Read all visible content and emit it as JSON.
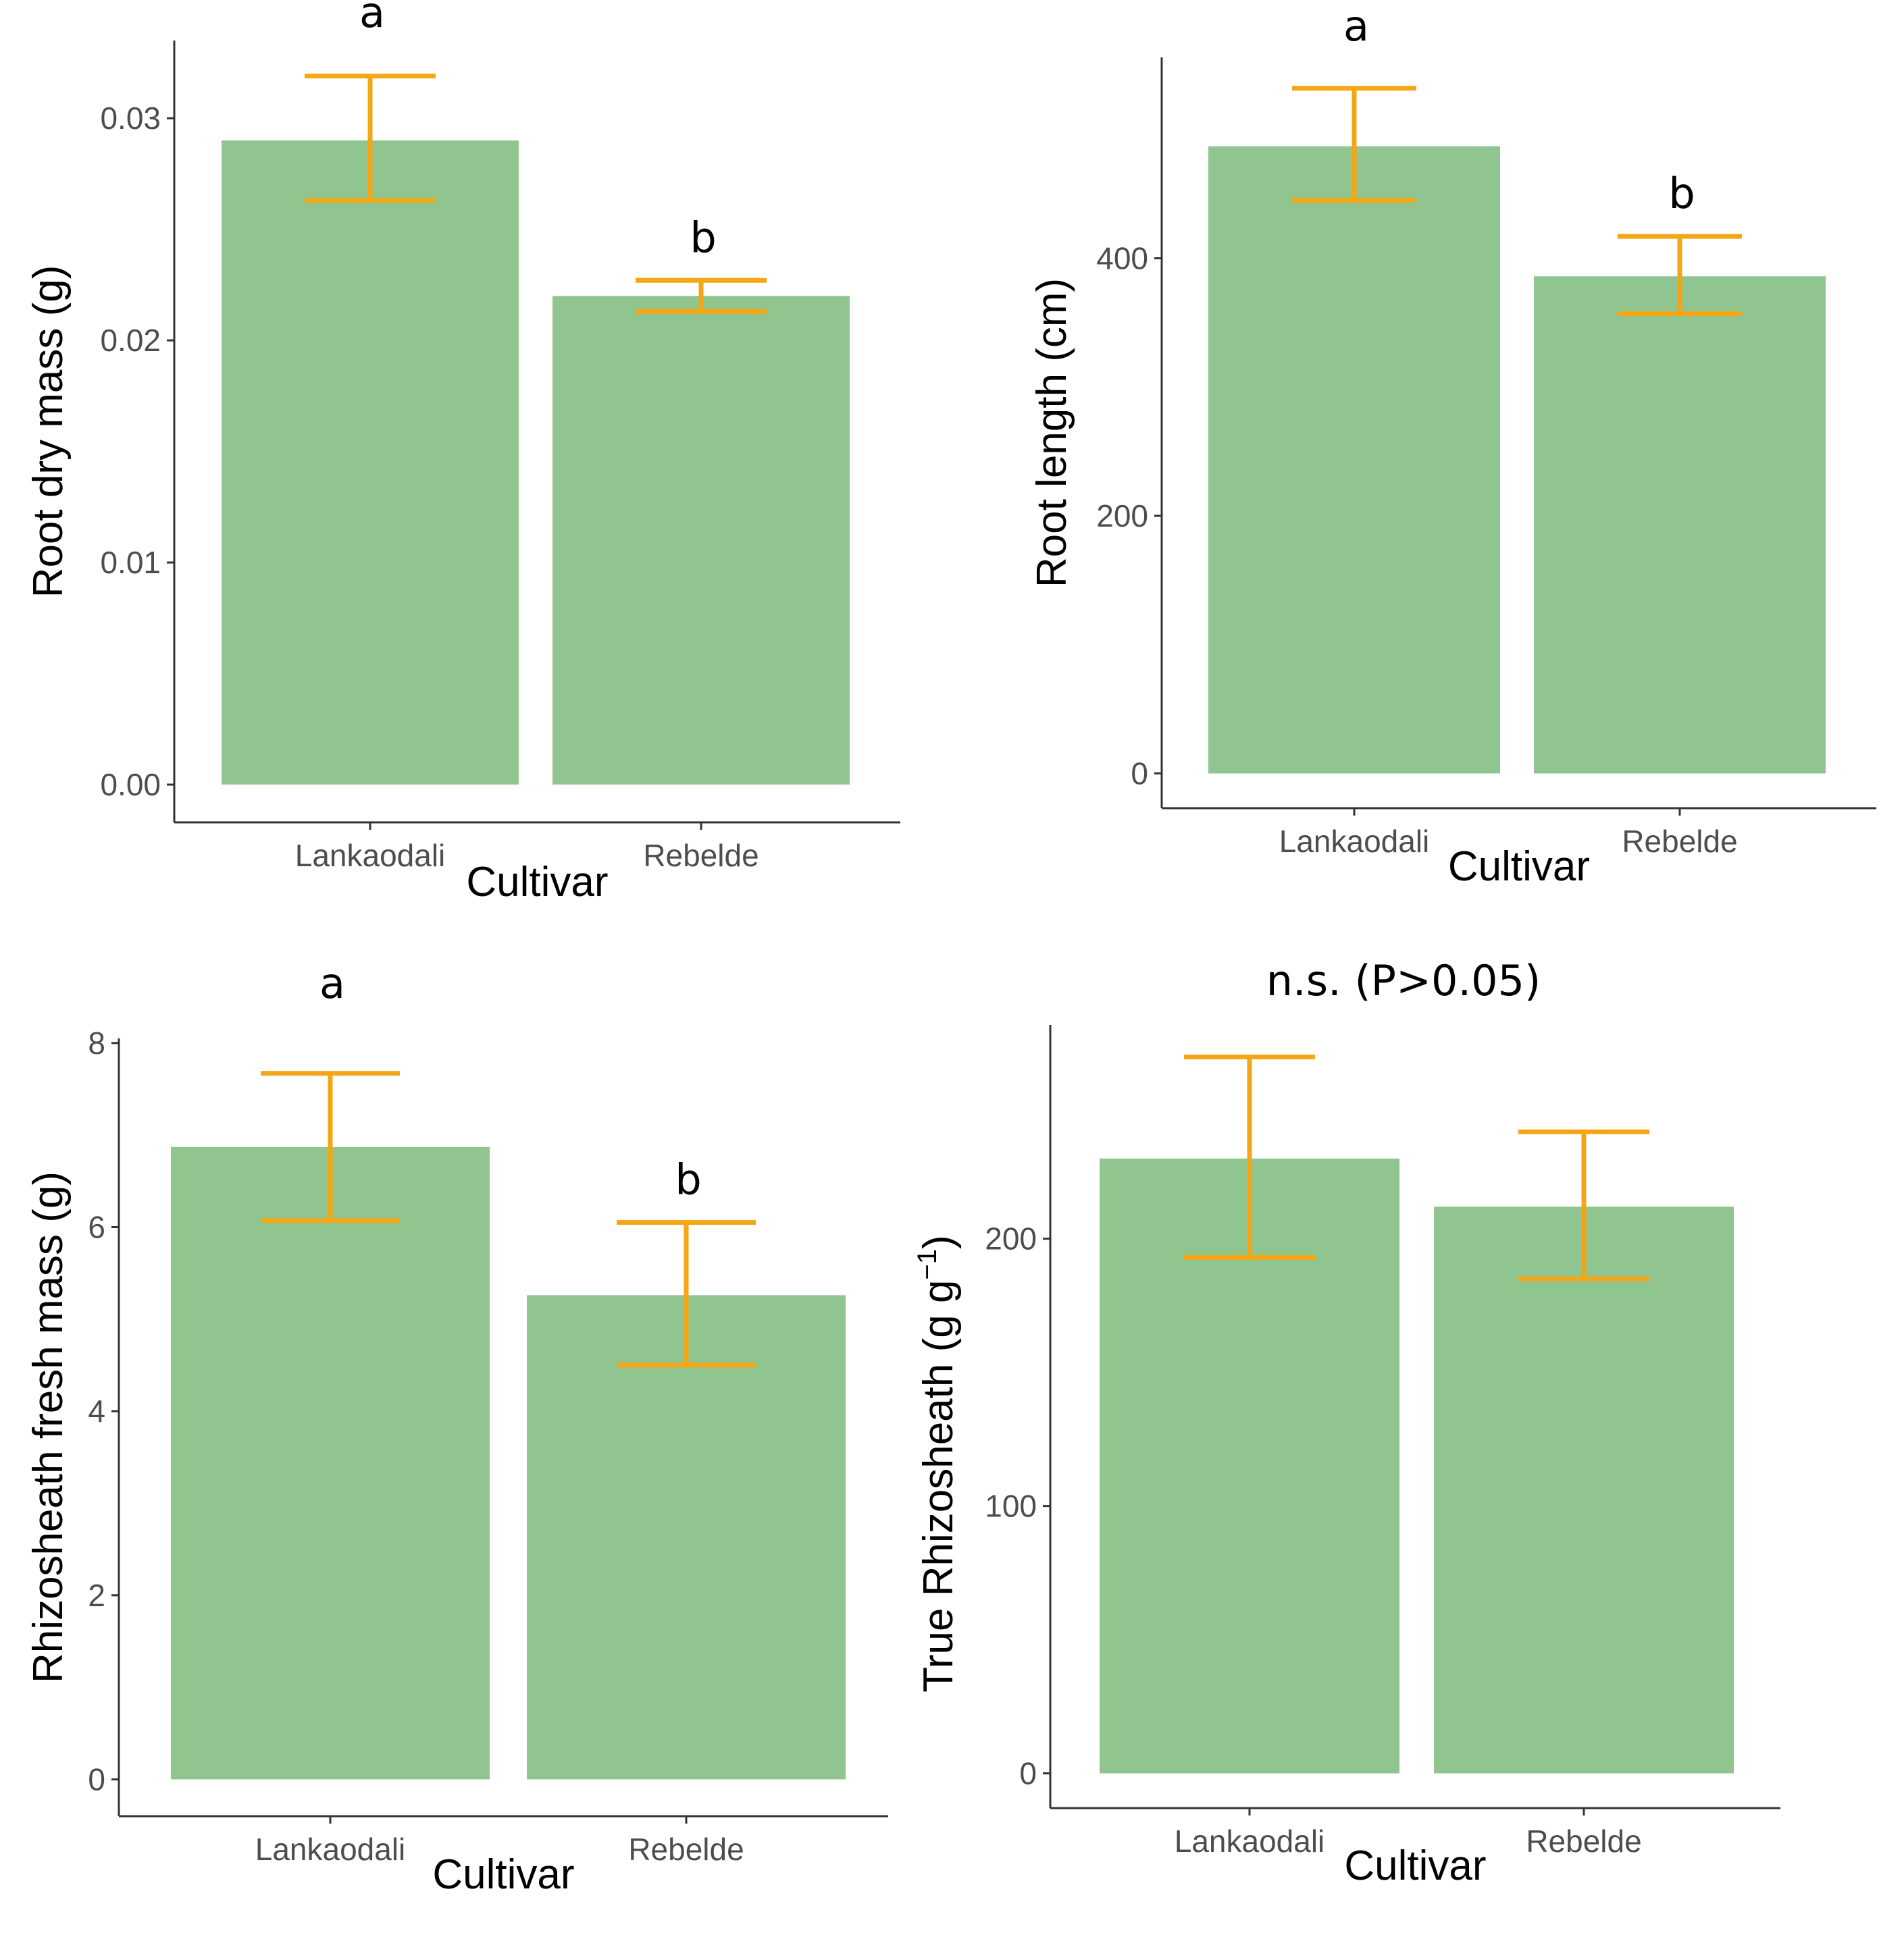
{
  "colors": {
    "bar": "#90c590",
    "error_bar": "#f5a614",
    "axis": "#333333",
    "tick_text": "#4d4d4d"
  },
  "chart_data": [
    {
      "type": "bar",
      "panel": "top-left",
      "title": "",
      "xlabel": "Cultivar",
      "ylabel": "Root dry mass (g)",
      "categories": [
        "Lankaodali",
        "Rebelde"
      ],
      "values": [
        0.029,
        0.022
      ],
      "error_lower": [
        0.0263,
        0.0213
      ],
      "error_upper": [
        0.0319,
        0.0227
      ],
      "significance_labels": [
        "a",
        "b"
      ],
      "yticks": [
        0.0,
        0.01,
        0.02,
        0.03
      ],
      "ytick_labels": [
        "0.00",
        "0.01",
        "0.02",
        "0.03"
      ],
      "ylim": [
        -0.0017,
        0.0335
      ],
      "grid": false
    },
    {
      "type": "bar",
      "panel": "top-right",
      "title": "",
      "xlabel": "Cultivar",
      "ylabel": "Root length (cm)",
      "categories": [
        "Lankaodali",
        "Rebelde"
      ],
      "values": [
        487,
        386
      ],
      "error_lower": [
        445,
        357
      ],
      "error_upper": [
        532,
        417
      ],
      "significance_labels": [
        "a",
        "b"
      ],
      "yticks": [
        0,
        200,
        400
      ],
      "ytick_labels": [
        "0",
        "200",
        "400"
      ],
      "ylim": [
        -27,
        556
      ],
      "grid": false
    },
    {
      "type": "bar",
      "panel": "bottom-left",
      "title": "",
      "xlabel": "Cultivar",
      "ylabel": "Rhizosheath fresh mass (g)",
      "categories": [
        "Lankaodali",
        "Rebelde"
      ],
      "values": [
        6.87,
        5.26
      ],
      "error_lower": [
        6.07,
        4.5
      ],
      "error_upper": [
        7.67,
        6.05
      ],
      "significance_labels": [
        "a",
        "b"
      ],
      "yticks": [
        0,
        2,
        4,
        6,
        8
      ],
      "ytick_labels": [
        "0",
        "2",
        "4",
        "6",
        "8"
      ],
      "ylim": [
        -0.4,
        8.05
      ],
      "grid": false
    },
    {
      "type": "bar",
      "panel": "bottom-right",
      "title": "n.s. (P>0.05)",
      "xlabel": "Cultivar",
      "ylabel_main": "True Rhizosheath (g g",
      "ylabel_sup": "−1",
      "ylabel_end": ")",
      "categories": [
        "Lankaodali",
        "Rebelde"
      ],
      "values": [
        230,
        212
      ],
      "error_lower": [
        193,
        185
      ],
      "error_upper": [
        268,
        240
      ],
      "significance_labels": [
        "",
        ""
      ],
      "yticks": [
        0,
        100,
        200
      ],
      "ytick_labels": [
        "0",
        "100",
        "200"
      ],
      "ylim": [
        -13,
        280
      ],
      "grid": false
    }
  ]
}
